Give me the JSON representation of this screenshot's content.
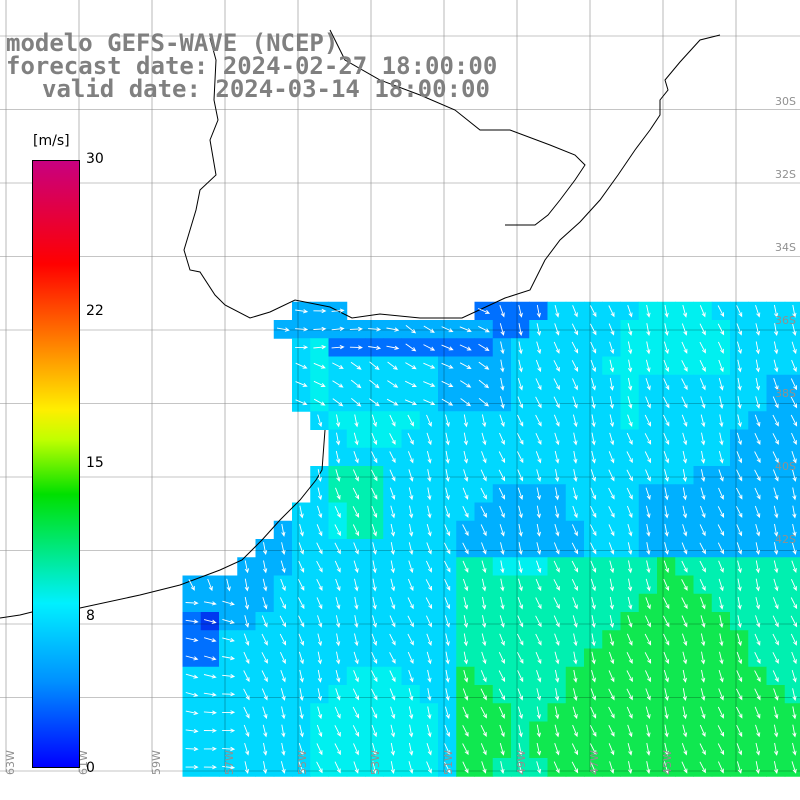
{
  "title": {
    "line1": "modelo GEFS-WAVE (NCEP)",
    "line2": "forecast date: 2024-02-27 18:00:00",
    "line3": "valid date: 2024-03-14 18:00:00"
  },
  "colorbar": {
    "unit": "[m/s]",
    "ticks": [
      "30",
      "22",
      "15",
      "8",
      "0"
    ],
    "tick_values": [
      30,
      22,
      15,
      8,
      0
    ],
    "range": [
      0,
      30
    ],
    "colors": [
      "#0000ff",
      "#0090ff",
      "#00f0ff",
      "#00e000",
      "#c0ff00",
      "#ffee00",
      "#ff8000",
      "#ff0000",
      "#c80080"
    ]
  },
  "map": {
    "lat_labels": [
      "30S",
      "32S",
      "34S",
      "36S",
      "38S",
      "40S",
      "42S"
    ],
    "lon_labels": [
      "63W",
      "61W",
      "59W",
      "57W",
      "55W",
      "53W",
      "51W",
      "49W",
      "47W",
      "45W"
    ],
    "land_color": "#ffffff",
    "arrow_color": "#ffffff",
    "coastline_color": "#000000"
  }
}
